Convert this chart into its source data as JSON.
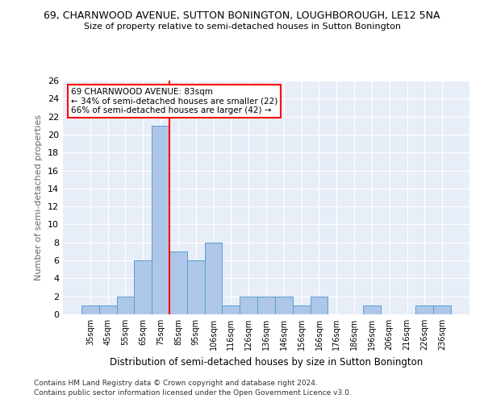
{
  "title_line1": "69, CHARNWOOD AVENUE, SUTTON BONINGTON, LOUGHBOROUGH, LE12 5NA",
  "title_line2": "Size of property relative to semi-detached houses in Sutton Bonington",
  "xlabel": "Distribution of semi-detached houses by size in Sutton Bonington",
  "ylabel": "Number of semi-detached properties",
  "categories": [
    "35sqm",
    "45sqm",
    "55sqm",
    "65sqm",
    "75sqm",
    "85sqm",
    "95sqm",
    "106sqm",
    "116sqm",
    "126sqm",
    "136sqm",
    "146sqm",
    "156sqm",
    "166sqm",
    "176sqm",
    "186sqm",
    "196sqm",
    "206sqm",
    "216sqm",
    "226sqm",
    "236sqm"
  ],
  "values": [
    1,
    1,
    2,
    6,
    21,
    7,
    6,
    8,
    1,
    2,
    2,
    2,
    1,
    2,
    0,
    0,
    1,
    0,
    0,
    1,
    1
  ],
  "bar_color": "#aec6e8",
  "bar_edge_color": "#5a9fd4",
  "property_line_x": 4.5,
  "annotation_text": "69 CHARNWOOD AVENUE: 83sqm\n← 34% of semi-detached houses are smaller (22)\n66% of semi-detached houses are larger (42) →",
  "annotation_box_color": "white",
  "annotation_box_edge_color": "red",
  "property_line_color": "red",
  "ylim": [
    0,
    26
  ],
  "yticks": [
    0,
    2,
    4,
    6,
    8,
    10,
    12,
    14,
    16,
    18,
    20,
    22,
    24,
    26
  ],
  "background_color": "#e8eef8",
  "grid_color": "white",
  "footer_line1": "Contains HM Land Registry data © Crown copyright and database right 2024.",
  "footer_line2": "Contains public sector information licensed under the Open Government Licence v3.0."
}
